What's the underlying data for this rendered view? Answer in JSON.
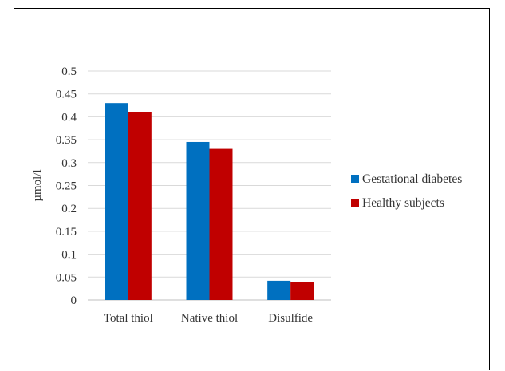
{
  "chart_data": {
    "type": "bar",
    "title": "",
    "xlabel": "",
    "ylabel": "µmol/l",
    "ylim": [
      0,
      0.5
    ],
    "yticks": [
      "0",
      "0.05",
      "0.1",
      "0.15",
      "0.2",
      "0.25",
      "0.3",
      "0.35",
      "0.4",
      "0.45",
      "0.5"
    ],
    "categories": [
      "Total thiol",
      "Native thiol",
      "Disulfide"
    ],
    "series": [
      {
        "name": "Gestational diabetes",
        "color": "#0070C0",
        "values": [
          0.43,
          0.345,
          0.042
        ]
      },
      {
        "name": "Healthy subjects",
        "color": "#C00000",
        "values": [
          0.41,
          0.33,
          0.04
        ]
      }
    ],
    "grid": true,
    "legend": "right"
  }
}
